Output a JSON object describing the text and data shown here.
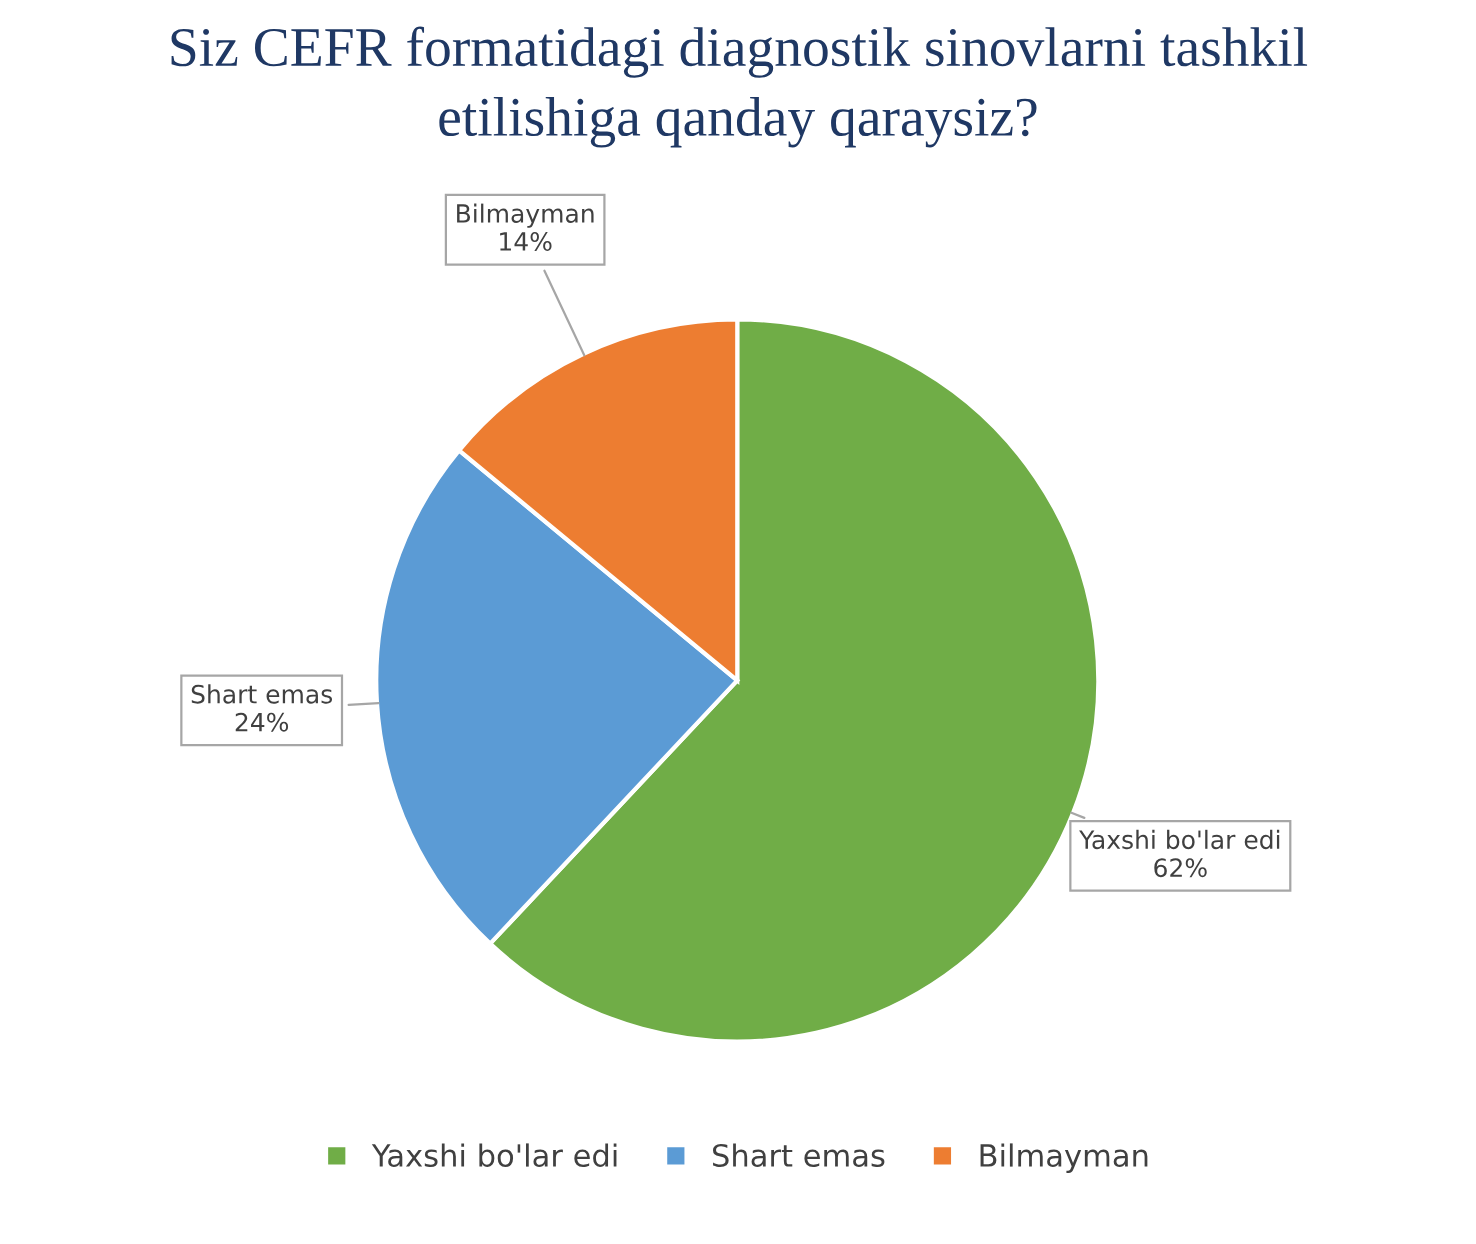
{
  "chart_data": {
    "type": "pie",
    "title": "Siz CEFR formatidagi diagnostik sinovlarni tashkil\netilishiga qanday qaraysiz?",
    "categories": [
      "Yaxshi bo'lar edi",
      "Shart emas",
      "Bilmayman"
    ],
    "values": [
      62,
      24,
      14
    ],
    "value_labels": [
      "62%",
      "24%",
      "14%"
    ],
    "colors": [
      "#70ad47",
      "#5b9bd5",
      "#ed7d31"
    ],
    "legend": "bottom"
  }
}
